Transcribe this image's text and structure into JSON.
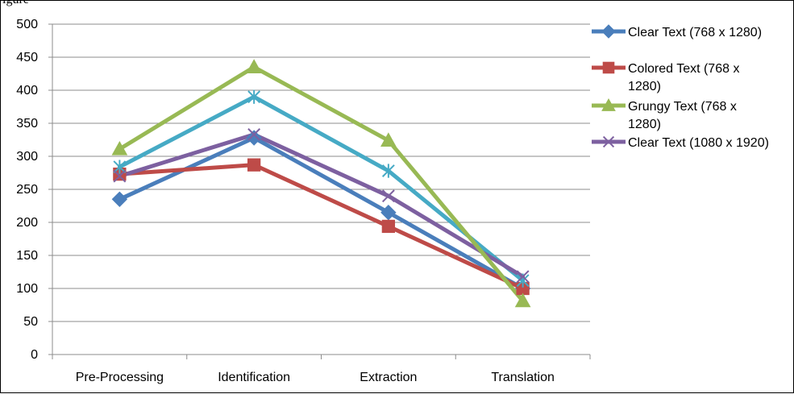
{
  "partial_caption": "igure",
  "chart_data": {
    "type": "line",
    "title": "",
    "xlabel": "",
    "ylabel": "",
    "categories": [
      "Pre-Processing",
      "Identification",
      "Extraction",
      "Translation"
    ],
    "ylim": [
      0,
      500
    ],
    "yticks": [
      0,
      50,
      100,
      150,
      200,
      250,
      300,
      350,
      400,
      450,
      500
    ],
    "grid": "horizontal",
    "legend_position": "right",
    "series": [
      {
        "name": "Clear Text (768 x 1280)",
        "values": [
          235,
          328,
          215,
          100
        ],
        "color": "#4a7ebb",
        "marker": "diamond",
        "legend_lines": [
          "Clear Text (768 x 1280)"
        ]
      },
      {
        "name": "Colored Text (768 x 1280)",
        "values": [
          273,
          287,
          194,
          100
        ],
        "color": "#be4b48",
        "marker": "square",
        "legend_lines": [
          "Colored Text (768 x",
          "1280)"
        ]
      },
      {
        "name": "Grungy Text (768 x 1280)",
        "values": [
          311,
          435,
          324,
          81
        ],
        "color": "#98b954",
        "marker": "triangle",
        "legend_lines": [
          "Grungy Text (768 x",
          "1280)"
        ]
      },
      {
        "name": "Clear Text (1080 x 1920)",
        "values": [
          270,
          333,
          240,
          118
        ],
        "color": "#7d60a0",
        "marker": "x",
        "legend_lines": [
          "Clear Text (1080 x 1920)"
        ]
      },
      {
        "name": "",
        "values": [
          284,
          390,
          278,
          112
        ],
        "color": "#46aac5",
        "marker": "star"
      }
    ]
  }
}
